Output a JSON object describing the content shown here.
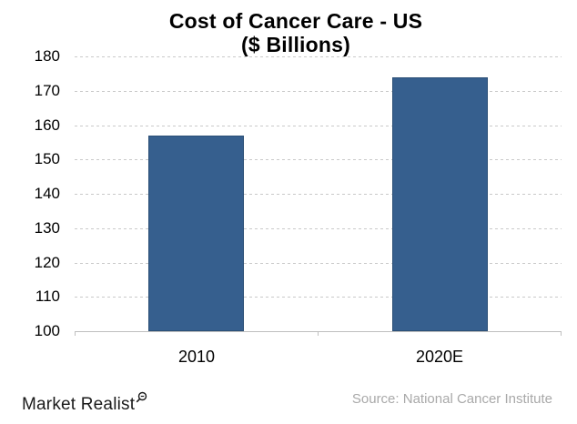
{
  "title": {
    "line1": "Cost of Cancer Care - US",
    "line2": "($ Billions)"
  },
  "chart_data": {
    "type": "bar",
    "categories": [
      "2010",
      "2020E"
    ],
    "values": [
      157,
      174
    ],
    "title": "Cost of Cancer Care - US ($ Billions)",
    "xlabel": "",
    "ylabel": "",
    "ylim": [
      100,
      180
    ],
    "ytick_step": 10,
    "yticks": [
      180,
      170,
      160,
      150,
      140,
      130,
      120,
      110,
      100
    ],
    "grid": true,
    "gridline_style": "dotted",
    "legend": "none",
    "bar_color": "#365f8e",
    "bar_border_color": "#2b4f76"
  },
  "footer": {
    "brand": "Market Realist",
    "brand_icon": "magnifier-icon",
    "source": "Source: National Cancer Institute"
  },
  "colors": {
    "background": "#ffffff",
    "title_text": "#000000",
    "axis_line": "#bfbfbf",
    "gridline": "#c9c9c9",
    "tick_label": "#000000",
    "source_text": "#a9a9a9",
    "bar_fill": "#365f8e",
    "bar_border": "#2b4f76"
  }
}
